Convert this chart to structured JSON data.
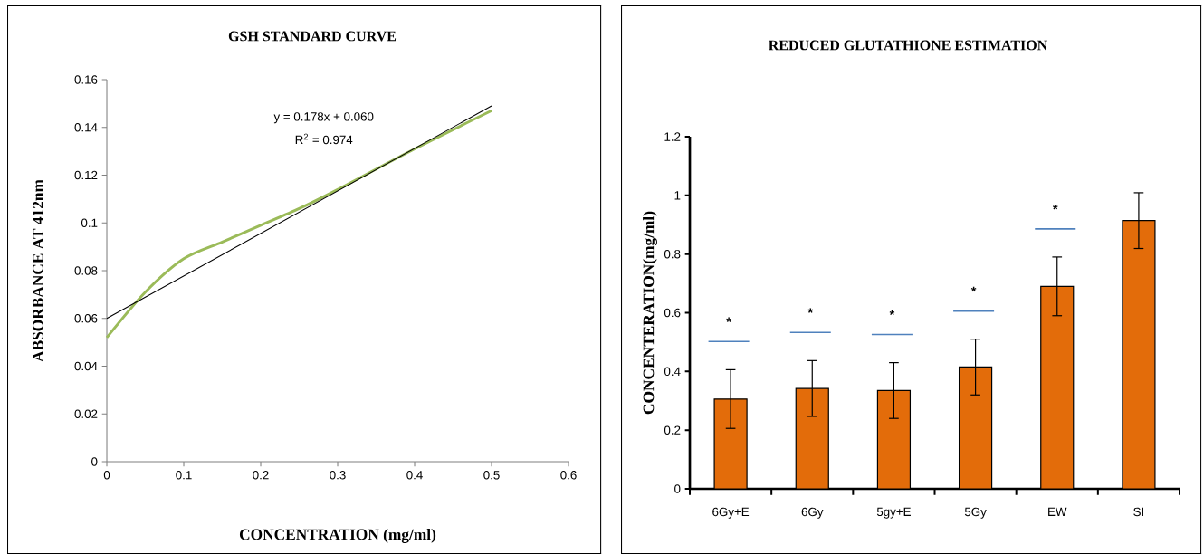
{
  "chart_data": [
    {
      "type": "line",
      "title": "GSH STANDARD CURVE",
      "xlabel": "CONCENTRATION  (mg/ml)",
      "ylabel": "ABSORBANCE  AT  412nm",
      "series": [
        {
          "color": "#9bbb59",
          "x": [
            0,
            0.05,
            0.1,
            0.15,
            0.2,
            0.25,
            0.3,
            0.4,
            0.5
          ],
          "values": [
            0.052,
            0.071,
            0.085,
            0.092,
            0.099,
            0.106,
            0.114,
            0.131,
            0.147
          ]
        },
        {
          "color": "#000000",
          "x": [
            0,
            0.5
          ],
          "values": [
            0.06,
            0.149
          ]
        }
      ],
      "xlim": [
        0,
        0.6
      ],
      "xticks": [
        0,
        0.1,
        0.2,
        0.3,
        0.4,
        0.5,
        0.6
      ],
      "ylim": [
        0,
        0.16
      ],
      "yticks": [
        0,
        0.02,
        0.04,
        0.06,
        0.08,
        0.1,
        0.12,
        0.14,
        0.16
      ],
      "annotations": [
        "y = 0.178x + 0.060",
        "R$^{2}$ = 0.974"
      ]
    },
    {
      "type": "bar",
      "title": "REDUCED GLUTATHIONE  ESTIMATION",
      "ylabel": "CONCENTERATION(mg/ml)",
      "categories": [
        "6Gy+E",
        "6Gy",
        "5gy+E",
        "5Gy",
        "EW",
        "SI"
      ],
      "values": [
        0.306,
        0.342,
        0.335,
        0.415,
        0.69,
        0.914
      ],
      "errors": [
        0.1,
        0.095,
        0.095,
        0.095,
        0.1,
        0.095
      ],
      "color": "#e36c0a",
      "ylim": [
        0,
        1.2
      ],
      "yticks": [
        0,
        0.2,
        0.4,
        0.6,
        0.8,
        1,
        1.2
      ],
      "annotations": [
        "*",
        "*",
        "*",
        "*",
        "*"
      ]
    }
  ]
}
